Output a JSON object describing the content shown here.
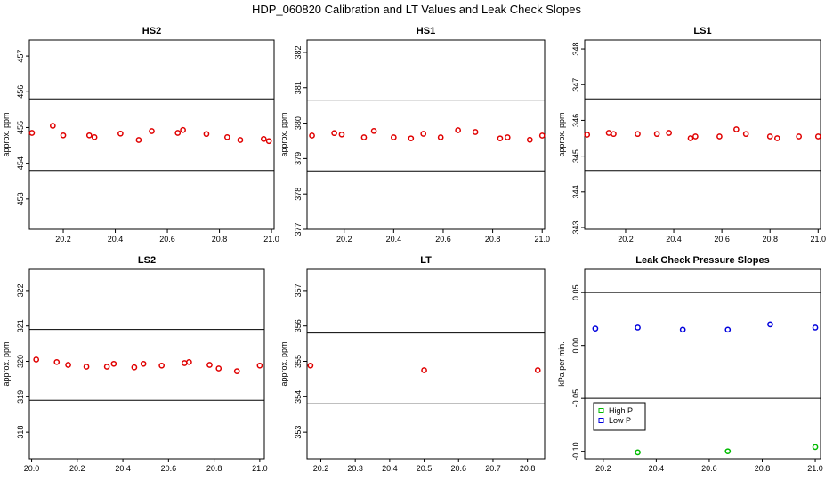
{
  "page_title": "HDP_060820  Calibration and LT Values and Leak Check Slopes",
  "colors": {
    "red": "#e00000",
    "green": "#00bb00",
    "blue": "#0000dd",
    "axis": "#000000"
  },
  "chart_data": [
    {
      "name": "panel-hs2",
      "type": "scatter",
      "title": "HS2",
      "ylabel": "approx. ppm",
      "xlim": [
        20.07,
        21.01
      ],
      "ylim": [
        452.15,
        457.45
      ],
      "xticks": [
        20.2,
        20.4,
        20.6,
        20.8,
        21.0
      ],
      "xtick_labels": [
        "20.2",
        "20.4",
        "20.6",
        "20.8",
        "21.0"
      ],
      "yticks": [
        453,
        454,
        455,
        456,
        457
      ],
      "ytick_labels": [
        "453",
        "454",
        "455",
        "456",
        "457"
      ],
      "hlines": [
        455.8,
        453.8
      ],
      "series": [
        {
          "name": "HS2",
          "color": "red",
          "marker": "circle",
          "x": [
            20.08,
            20.16,
            20.2,
            20.3,
            20.32,
            20.42,
            20.49,
            20.54,
            20.64,
            20.66,
            20.75,
            20.83,
            20.88,
            20.97,
            20.99
          ],
          "y": [
            454.85,
            455.05,
            454.78,
            454.78,
            454.73,
            454.83,
            454.65,
            454.9,
            454.85,
            454.93,
            454.82,
            454.73,
            454.65,
            454.68,
            454.62
          ]
        }
      ]
    },
    {
      "name": "panel-hs1",
      "type": "scatter",
      "title": "HS1",
      "ylabel": "approx. ppm",
      "xlim": [
        20.05,
        21.01
      ],
      "ylim": [
        377.0,
        382.35
      ],
      "xticks": [
        20.2,
        20.4,
        20.6,
        20.8,
        21.0
      ],
      "xtick_labels": [
        "20.2",
        "20.4",
        "20.6",
        "20.8",
        "21.0"
      ],
      "yticks": [
        377,
        378,
        379,
        380,
        381,
        382
      ],
      "ytick_labels": [
        "377",
        "378",
        "379",
        "380",
        "381",
        "382"
      ],
      "hlines": [
        380.65,
        378.65
      ],
      "series": [
        {
          "name": "HS1",
          "color": "red",
          "marker": "circle",
          "x": [
            20.07,
            20.16,
            20.19,
            20.28,
            20.32,
            20.4,
            20.47,
            20.52,
            20.59,
            20.66,
            20.73,
            20.83,
            20.86,
            20.95,
            21.0
          ],
          "y": [
            379.65,
            379.72,
            379.68,
            379.6,
            379.78,
            379.6,
            379.57,
            379.7,
            379.6,
            379.8,
            379.75,
            379.57,
            379.6,
            379.53,
            379.65
          ]
        }
      ]
    },
    {
      "name": "panel-ls1",
      "type": "scatter",
      "title": "LS1",
      "ylabel": "approx. ppm",
      "xlim": [
        20.03,
        21.01
      ],
      "ylim": [
        342.95,
        348.25
      ],
      "xticks": [
        20.2,
        20.4,
        20.6,
        20.8,
        21.0
      ],
      "xtick_labels": [
        "20.2",
        "20.4",
        "20.6",
        "20.8",
        "21.0"
      ],
      "yticks": [
        343,
        344,
        345,
        346,
        347,
        348
      ],
      "ytick_labels": [
        "343",
        "344",
        "345",
        "346",
        "347",
        "348"
      ],
      "hlines": [
        346.6,
        344.6
      ],
      "series": [
        {
          "name": "LS1",
          "color": "red",
          "marker": "circle",
          "x": [
            20.04,
            20.13,
            20.15,
            20.25,
            20.33,
            20.38,
            20.47,
            20.49,
            20.59,
            20.66,
            20.7,
            20.8,
            20.83,
            20.92,
            21.0
          ],
          "y": [
            345.6,
            345.65,
            345.62,
            345.62,
            345.62,
            345.65,
            345.5,
            345.55,
            345.55,
            345.75,
            345.62,
            345.55,
            345.5,
            345.55,
            345.55
          ]
        }
      ]
    },
    {
      "name": "panel-ls2",
      "type": "scatter",
      "title": "LS2",
      "ylabel": "approx. ppm",
      "xlim": [
        19.99,
        21.02
      ],
      "ylim": [
        317.25,
        322.6
      ],
      "xticks": [
        20.0,
        20.2,
        20.4,
        20.6,
        20.8,
        21.0
      ],
      "xtick_labels": [
        "20.0",
        "20.2",
        "20.4",
        "20.6",
        "20.8",
        "21.0"
      ],
      "yticks": [
        318,
        319,
        320,
        321,
        322
      ],
      "ytick_labels": [
        "318",
        "319",
        "320",
        "321",
        "322"
      ],
      "hlines": [
        320.9,
        318.9
      ],
      "series": [
        {
          "name": "LS2",
          "color": "red",
          "marker": "circle",
          "x": [
            20.02,
            20.11,
            20.16,
            20.24,
            20.33,
            20.36,
            20.45,
            20.49,
            20.57,
            20.67,
            20.69,
            20.78,
            20.82,
            20.9,
            21.0
          ],
          "y": [
            320.05,
            319.98,
            319.9,
            319.85,
            319.85,
            319.93,
            319.83,
            319.93,
            319.88,
            319.95,
            319.98,
            319.9,
            319.8,
            319.72,
            319.88
          ]
        }
      ]
    },
    {
      "name": "panel-lt",
      "type": "scatter",
      "title": "LT",
      "ylabel": "approx. ppm",
      "xlim": [
        20.16,
        20.85
      ],
      "ylim": [
        352.25,
        357.6
      ],
      "xticks": [
        20.2,
        20.3,
        20.4,
        20.5,
        20.6,
        20.7,
        20.8
      ],
      "xtick_labels": [
        "20.2",
        "20.3",
        "20.4",
        "20.5",
        "20.6",
        "20.7",
        "20.8"
      ],
      "yticks": [
        353,
        354,
        355,
        356,
        357
      ],
      "ytick_labels": [
        "353",
        "354",
        "355",
        "356",
        "357"
      ],
      "hlines": [
        355.8,
        353.8
      ],
      "series": [
        {
          "name": "LT",
          "color": "red",
          "marker": "circle",
          "x": [
            20.17,
            20.5,
            20.83
          ],
          "y": [
            354.88,
            354.75,
            354.75
          ]
        }
      ]
    },
    {
      "name": "panel-leak",
      "type": "scatter",
      "title": "Leak Check Pressure Slopes",
      "ylabel": "kPa per min.",
      "xlim": [
        20.13,
        21.02
      ],
      "ylim": [
        -0.107,
        0.072
      ],
      "xticks": [
        20.2,
        20.4,
        20.6,
        20.8,
        21.0
      ],
      "xtick_labels": [
        "20.2",
        "20.4",
        "20.6",
        "20.8",
        "21.0"
      ],
      "yticks": [
        -0.1,
        -0.05,
        0.0,
        0.05
      ],
      "ytick_labels": [
        "-0.10",
        "-0.05",
        "0.00",
        "0.05"
      ],
      "hlines": [
        0.05,
        -0.05
      ],
      "legend": {
        "placement": "bottom-left",
        "entries": [
          {
            "label": "High P",
            "color": "green"
          },
          {
            "label": "Low P",
            "color": "blue"
          }
        ]
      },
      "series": [
        {
          "name": "High P",
          "color": "green",
          "marker": "circle",
          "x": [
            20.33,
            20.67,
            21.0
          ],
          "y": [
            -0.101,
            -0.1,
            -0.096
          ]
        },
        {
          "name": "Low P",
          "color": "blue",
          "marker": "circle",
          "x": [
            20.17,
            20.33,
            20.5,
            20.67,
            20.83,
            21.0
          ],
          "y": [
            0.016,
            0.017,
            0.015,
            0.015,
            0.02,
            0.017
          ]
        }
      ]
    }
  ]
}
